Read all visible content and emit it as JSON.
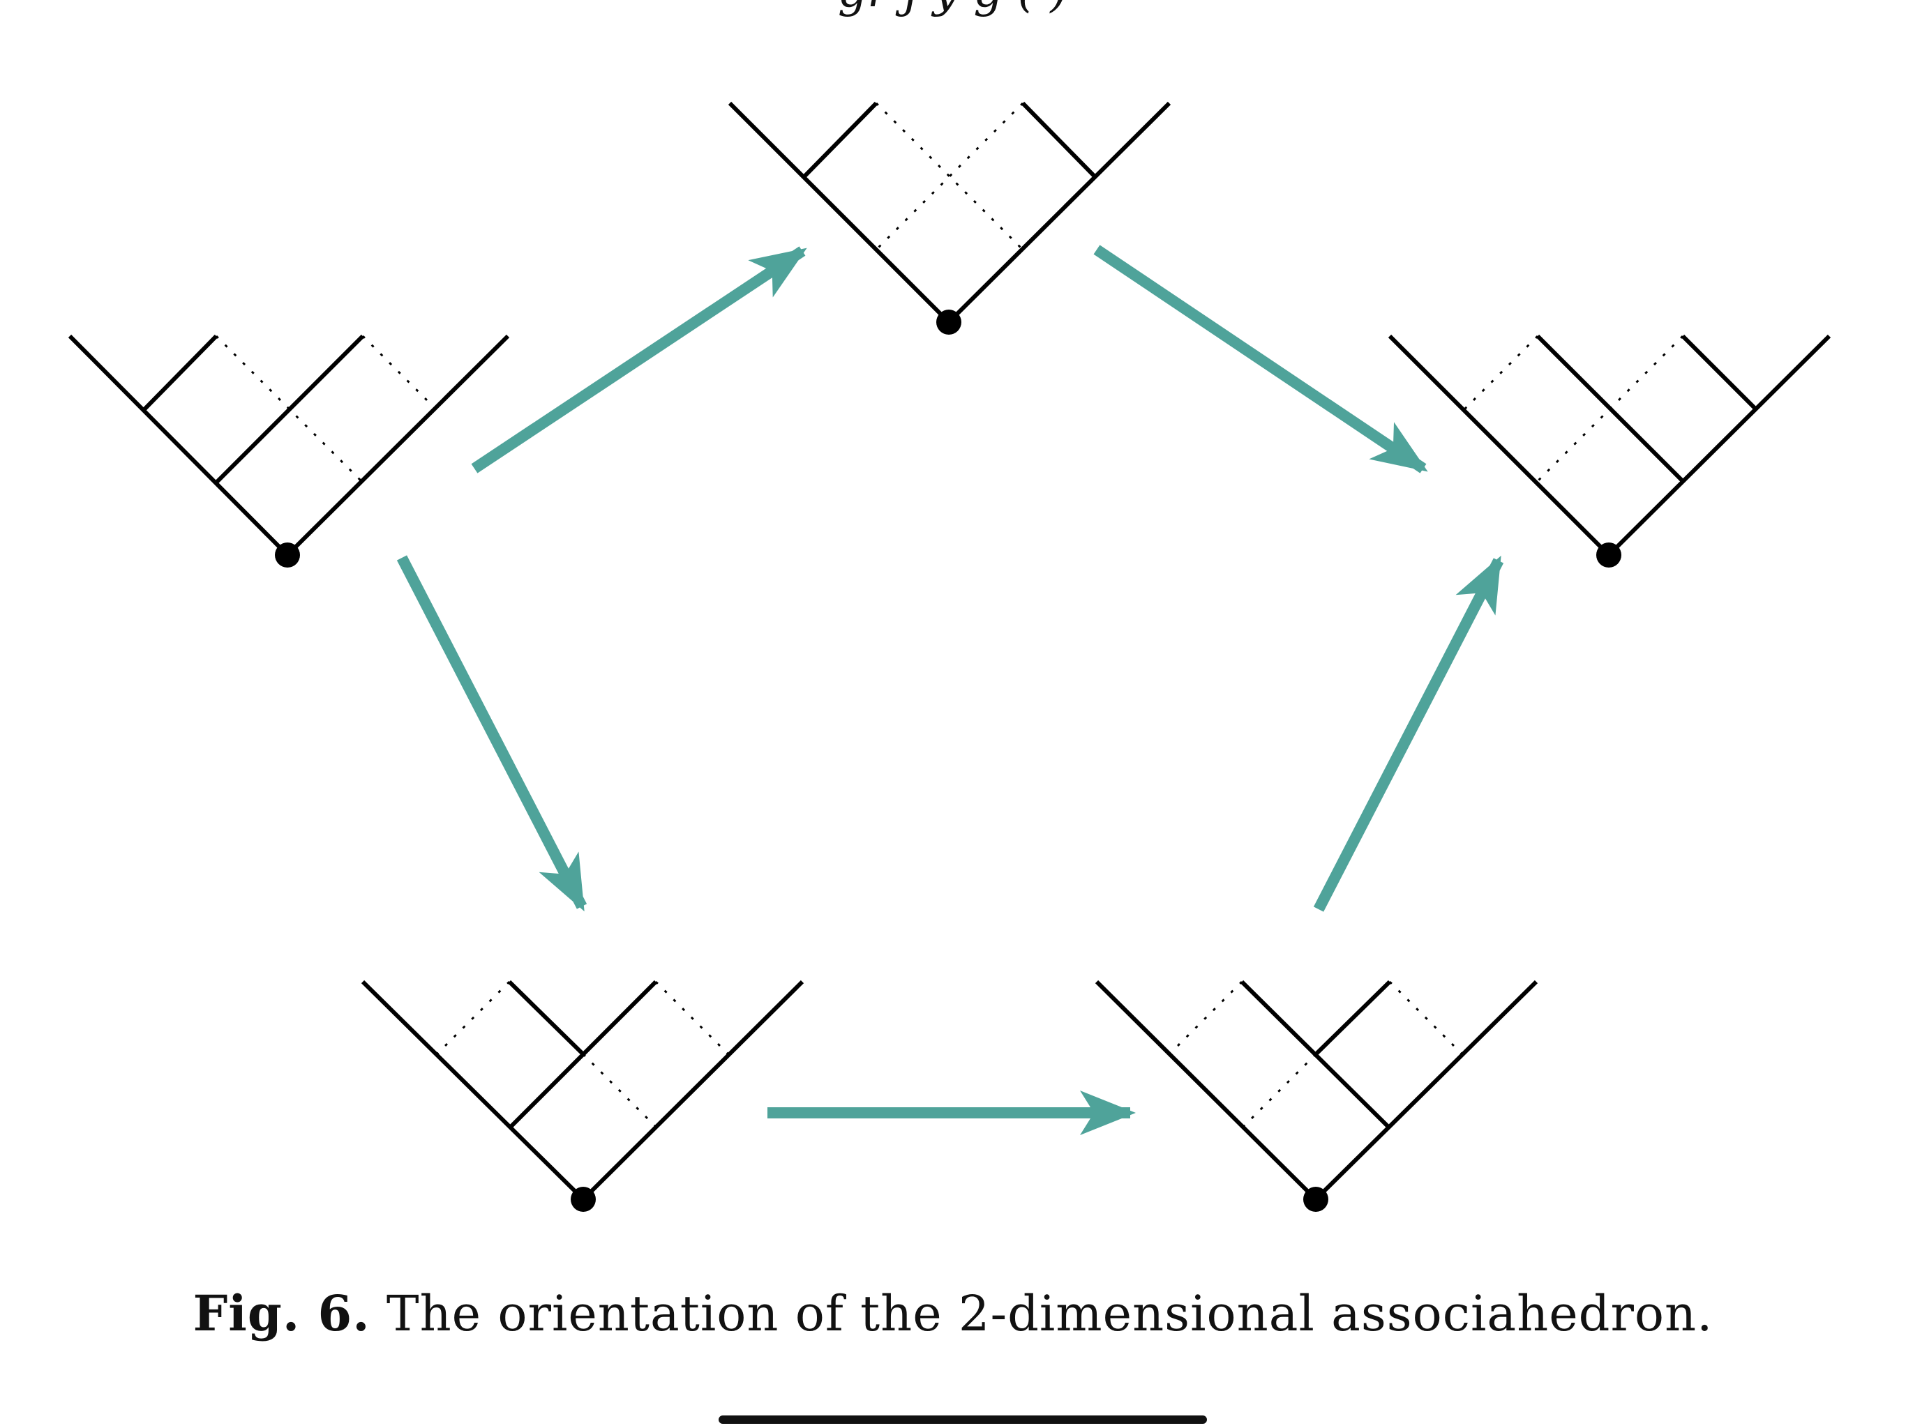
{
  "header": {
    "cutoff_text": "gr   j    y  g      (    )"
  },
  "figure": {
    "tree_color": "#000000",
    "arrow_color": "#4fa39a",
    "trees": [
      {
        "name": "tree-left"
      },
      {
        "name": "tree-top"
      },
      {
        "name": "tree-right"
      },
      {
        "name": "tree-bottom-left"
      },
      {
        "name": "tree-bottom-right"
      }
    ],
    "arrows": [
      {
        "from": "tree-left",
        "to": "tree-top"
      },
      {
        "from": "tree-top",
        "to": "tree-right"
      },
      {
        "from": "tree-left",
        "to": "tree-bottom-left"
      },
      {
        "from": "tree-bottom-left",
        "to": "tree-bottom-right"
      },
      {
        "from": "tree-bottom-right",
        "to": "tree-right"
      }
    ]
  },
  "caption": {
    "label": "Fig. 6.",
    "text": "The orientation of the 2-dimensional associahedron."
  }
}
